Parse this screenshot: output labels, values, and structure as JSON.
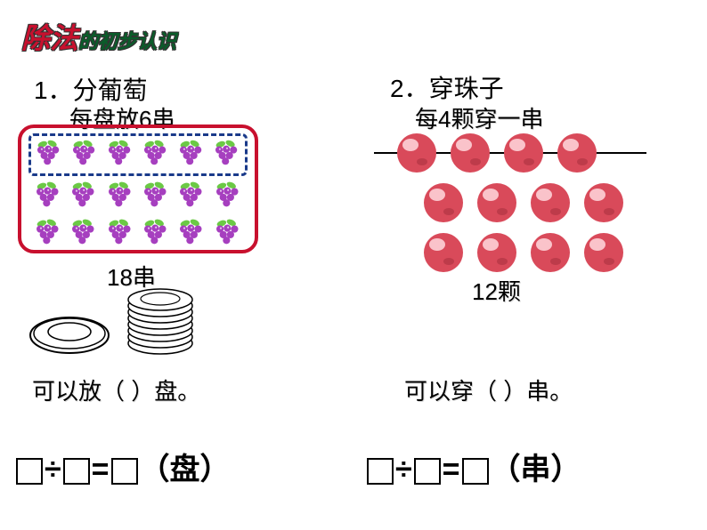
{
  "title": {
    "part1": "除法",
    "part1_color": "#c8102e",
    "part2": "的初步认识",
    "part2_color": "#0a5c2a",
    "highlight_color": "#e8e82a"
  },
  "problem1": {
    "number_label": "1．分葡萄",
    "sub_label": "每盘放6串",
    "count_label": "18串",
    "question": "可以放（  ）盘。",
    "equation_unit": "（盘）",
    "grape_rows": 3,
    "grape_cols": 6,
    "grape_color": "#a63fbf",
    "grape_leaf_color": "#6bc945",
    "plate_border_color": "#c8102e",
    "dashed_color": "#1a3a8a"
  },
  "problem2": {
    "number_label": "2．穿珠子",
    "sub_label": "每4颗穿一串",
    "count_label": "12颗",
    "question": "可以穿（  ）串。",
    "equation_unit": "（串）",
    "bead_rows": 3,
    "bead_cols": 4,
    "bead_color": "#d94a5a",
    "bead_highlight": "#ffd8de"
  },
  "equation_symbols": {
    "divide": "÷",
    "equals": "="
  }
}
